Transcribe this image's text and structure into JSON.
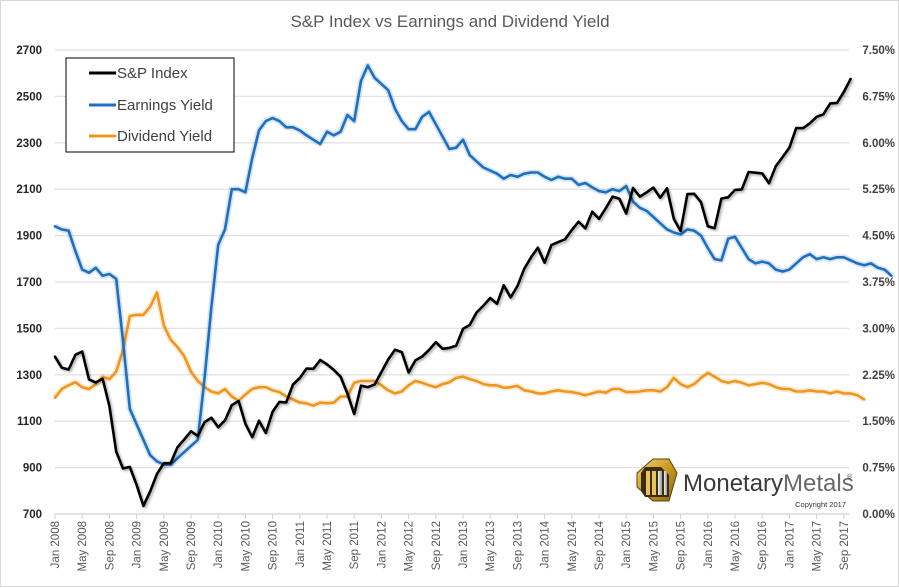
{
  "chart_data": {
    "type": "line",
    "title": "S&P Index vs Earnings and Dividend Yield",
    "xlabel": "",
    "ylabel_left": "",
    "ylabel_right": "",
    "x_start": "Jan 2008",
    "x_end": "Oct 2017",
    "x_frequency": "monthly",
    "x_tick_labels": [
      "Jan 2008",
      "May 2008",
      "Sep 2008",
      "Jan 2009",
      "May 2009",
      "Sep 2009",
      "Jan 2010",
      "May 2010",
      "Sep 2010",
      "Jan 2011",
      "May 2011",
      "Sep 2011",
      "Jan 2012",
      "May 2012",
      "Sep 2012",
      "Jan 2013",
      "May 2013",
      "Sep 2013",
      "Jan 2014",
      "May 2014",
      "Sep 2014",
      "Jan 2015",
      "May 2015",
      "Sep 2015",
      "Jan 2016",
      "May 2016",
      "Sep 2016",
      "Jan 2017",
      "May 2017",
      "Sep 2017"
    ],
    "y_left": {
      "min": 700,
      "max": 2700,
      "step": 200,
      "tick_labels": [
        "700",
        "900",
        "1100",
        "1300",
        "1500",
        "1700",
        "1900",
        "2100",
        "2300",
        "2500",
        "2700"
      ]
    },
    "y_right": {
      "min": 0,
      "max": 7.5,
      "step": 0.75,
      "tick_labels": [
        "0.00%",
        "0.75%",
        "1.50%",
        "2.25%",
        "3.00%",
        "3.75%",
        "4.50%",
        "5.25%",
        "6.00%",
        "6.75%",
        "7.50%"
      ]
    },
    "grid": true,
    "legend_position": "top-left",
    "series": [
      {
        "name": "S&P Index",
        "axis": "left",
        "color": "#000000",
        "values": [
          1378,
          1330,
          1323,
          1386,
          1400,
          1280,
          1267,
          1283,
          1165,
          969,
          896,
          903,
          826,
          735,
          798,
          873,
          919,
          919,
          987,
          1021,
          1057,
          1036,
          1096,
          1115,
          1074,
          1104,
          1169,
          1187,
          1089,
          1031,
          1102,
          1049,
          1141,
          1183,
          1181,
          1258,
          1286,
          1327,
          1326,
          1364,
          1345,
          1321,
          1292,
          1219,
          1131,
          1253,
          1247,
          1258,
          1312,
          1366,
          1408,
          1398,
          1310,
          1362,
          1379,
          1407,
          1441,
          1412,
          1416,
          1426,
          1498,
          1515,
          1569,
          1598,
          1631,
          1606,
          1686,
          1633,
          1682,
          1757,
          1806,
          1848,
          1783,
          1859,
          1872,
          1884,
          1924,
          1960,
          1931,
          2003,
          1972,
          2018,
          2068,
          2059,
          1995,
          2105,
          2068,
          2086,
          2107,
          2063,
          2104,
          1972,
          1920,
          2079,
          2080,
          2044,
          1940,
          1932,
          2060,
          2065,
          2097,
          2099,
          2174,
          2171,
          2168,
          2126,
          2199,
          2239,
          2279,
          2364,
          2363,
          2384,
          2412,
          2423,
          2470,
          2472,
          2519,
          2575
        ]
      },
      {
        "name": "Earnings Yield",
        "axis": "right",
        "color": "#1f6fbf",
        "values": [
          4.65,
          4.6,
          4.58,
          4.25,
          3.95,
          3.9,
          3.98,
          3.85,
          3.88,
          3.8,
          2.8,
          1.7,
          1.45,
          1.2,
          0.95,
          0.85,
          0.8,
          0.8,
          0.9,
          1.0,
          1.1,
          1.2,
          2.2,
          3.35,
          4.35,
          4.6,
          5.25,
          5.25,
          5.2,
          5.75,
          6.2,
          6.35,
          6.4,
          6.35,
          6.25,
          6.25,
          6.2,
          6.12,
          6.05,
          5.98,
          6.18,
          6.12,
          6.18,
          6.45,
          6.35,
          7.0,
          7.25,
          7.05,
          6.95,
          6.85,
          6.55,
          6.35,
          6.22,
          6.22,
          6.42,
          6.5,
          6.3,
          6.1,
          5.9,
          5.92,
          6.05,
          5.8,
          5.7,
          5.6,
          5.55,
          5.5,
          5.42,
          5.48,
          5.45,
          5.5,
          5.52,
          5.52,
          5.45,
          5.4,
          5.45,
          5.42,
          5.42,
          5.32,
          5.35,
          5.28,
          5.22,
          5.2,
          5.25,
          5.22,
          5.3,
          5.05,
          4.95,
          4.9,
          4.8,
          4.7,
          4.6,
          4.55,
          4.52,
          4.6,
          4.58,
          4.5,
          4.3,
          4.12,
          4.1,
          4.45,
          4.48,
          4.3,
          4.12,
          4.05,
          4.08,
          4.05,
          3.95,
          3.92,
          3.95,
          4.05,
          4.15,
          4.2,
          4.12,
          4.15,
          4.12,
          4.15,
          4.15,
          4.1,
          4.05,
          4.02,
          4.05,
          3.98,
          3.95,
          3.85
        ]
      },
      {
        "name": "Dividend Yield",
        "axis": "right",
        "color": "#f0961e",
        "values": [
          1.88,
          2.02,
          2.08,
          2.13,
          2.05,
          2.02,
          2.1,
          2.22,
          2.18,
          2.3,
          2.65,
          3.2,
          3.22,
          3.22,
          3.35,
          3.58,
          3.05,
          2.82,
          2.7,
          2.55,
          2.3,
          2.15,
          2.05,
          1.98,
          1.95,
          2.02,
          1.9,
          1.83,
          1.93,
          2.02,
          2.05,
          2.05,
          2.0,
          1.97,
          1.9,
          1.85,
          1.8,
          1.79,
          1.75,
          1.8,
          1.79,
          1.8,
          1.9,
          1.9,
          2.12,
          2.15,
          2.15,
          2.15,
          2.08,
          2.0,
          1.95,
          1.98,
          2.08,
          2.15,
          2.12,
          2.08,
          2.05,
          2.1,
          2.13,
          2.2,
          2.22,
          2.18,
          2.15,
          2.1,
          2.08,
          2.08,
          2.04,
          2.05,
          2.07,
          2.0,
          1.98,
          1.95,
          1.95,
          1.98,
          2.0,
          1.98,
          1.97,
          1.95,
          1.92,
          1.95,
          1.98,
          1.96,
          2.02,
          2.02,
          1.97,
          1.97,
          1.98,
          2.0,
          2.0,
          1.98,
          2.05,
          2.2,
          2.1,
          2.05,
          2.1,
          2.2,
          2.28,
          2.22,
          2.15,
          2.12,
          2.15,
          2.12,
          2.08,
          2.1,
          2.12,
          2.1,
          2.05,
          2.02,
          2.02,
          1.98,
          1.98,
          2.0,
          1.98,
          1.98,
          1.95,
          1.98,
          1.95,
          1.95,
          1.92,
          1.85
        ]
      }
    ],
    "annotations": []
  },
  "branding": {
    "logo_name": "Monetary",
    "logo_name_light": "Metals",
    "registered_mark": "®",
    "copyright": "Copyright 2017"
  }
}
